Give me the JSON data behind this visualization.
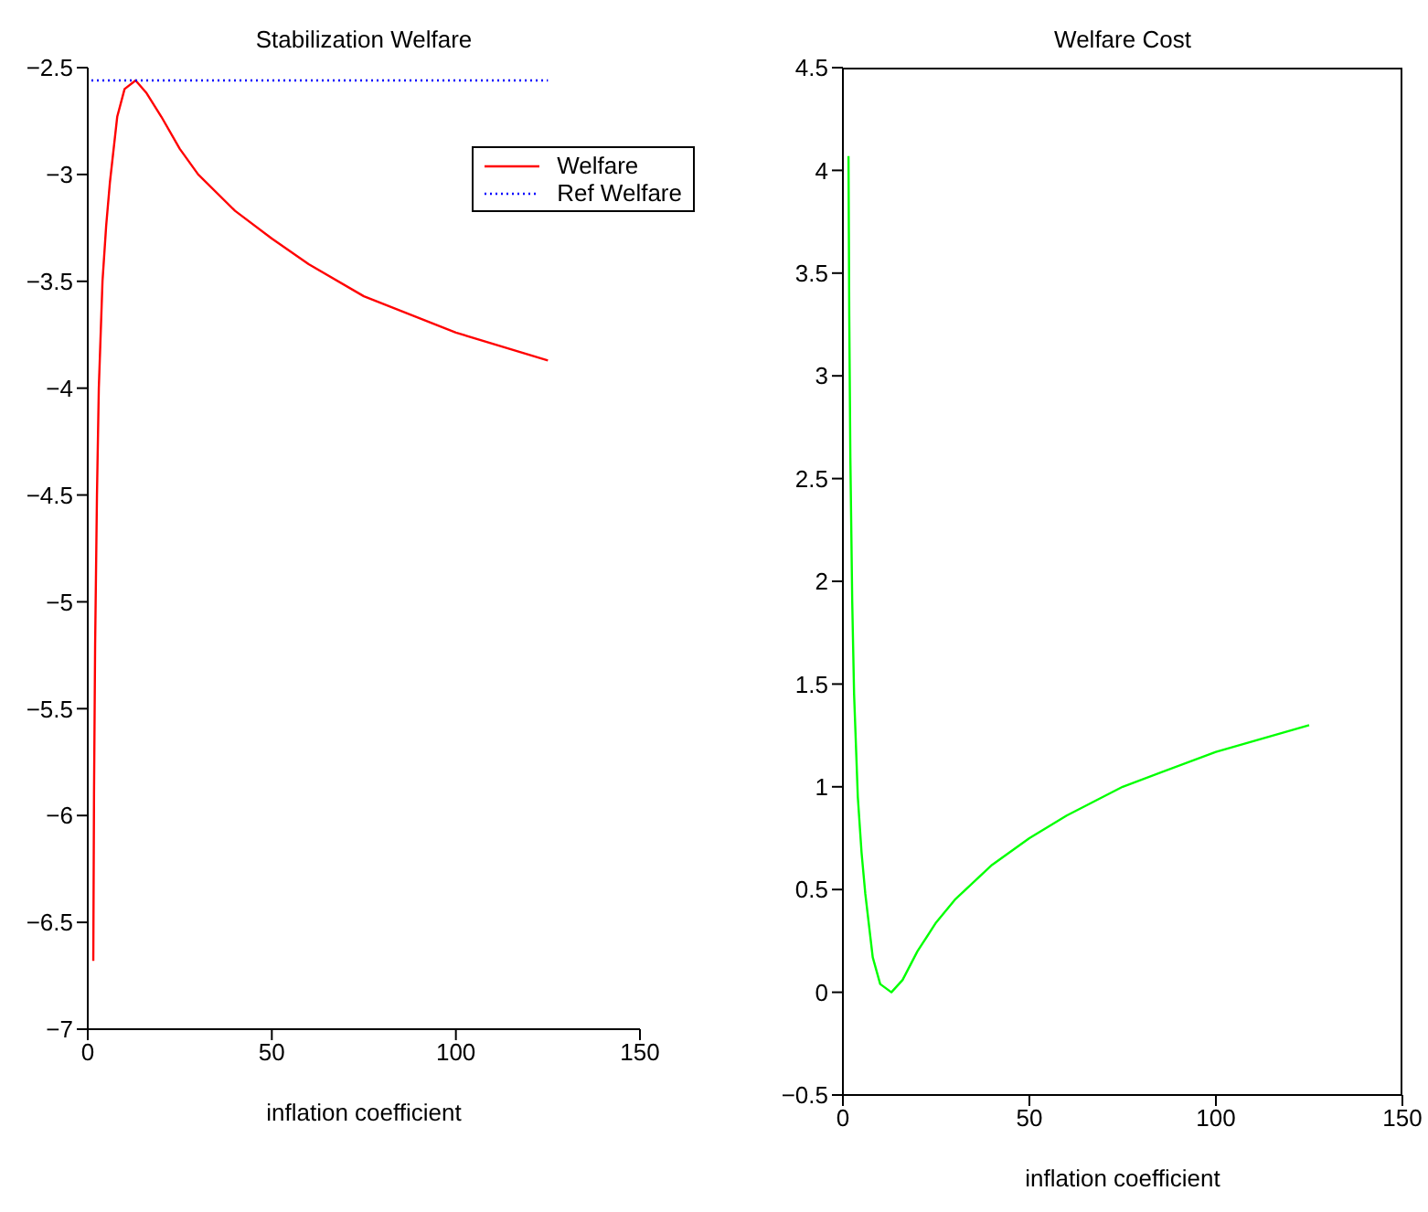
{
  "chart_data": [
    {
      "type": "line",
      "title": "Stabilization Welfare",
      "xlabel": "inflation coefficient",
      "xlim": [
        0,
        150
      ],
      "xticks": [
        0,
        50,
        100,
        150
      ],
      "ylim": [
        -7,
        -2.5
      ],
      "yticks": [
        -7,
        -6.5,
        -6,
        -5.5,
        -5,
        -4.5,
        -4,
        -3.5,
        -3,
        -2.5
      ],
      "legend": "top right",
      "series": [
        {
          "name": "Welfare",
          "color": "#ff0000",
          "line_style": "solid",
          "x": [
            1.5,
            1.7,
            2,
            2.5,
            3,
            4,
            5,
            6,
            8,
            10,
            13,
            16,
            20,
            25,
            30,
            40,
            50,
            60,
            75,
            100,
            125
          ],
          "values": [
            -6.68,
            -5.9,
            -5.2,
            -4.5,
            -4.0,
            -3.5,
            -3.24,
            -3.04,
            -2.73,
            -2.6,
            -2.56,
            -2.62,
            -2.73,
            -2.88,
            -3.0,
            -3.17,
            -3.3,
            -3.42,
            -3.57,
            -3.74,
            -3.87
          ]
        },
        {
          "name": "Ref Welfare",
          "color": "#0000ff",
          "line_style": "dotted",
          "x": [
            1,
            125
          ],
          "values": [
            -2.56,
            -2.56
          ]
        }
      ]
    },
    {
      "type": "line",
      "title": "Welfare Cost",
      "xlabel": "inflation coefficient",
      "xlim": [
        0,
        150
      ],
      "xticks": [
        0,
        50,
        100,
        150
      ],
      "ylim": [
        -0.5,
        4.5
      ],
      "yticks": [
        -0.5,
        0,
        0.5,
        1,
        1.5,
        2,
        2.5,
        3,
        3.5,
        4,
        4.5
      ],
      "legend": false,
      "series": [
        {
          "color": "#00ff00",
          "line_style": "solid",
          "x": [
            1.5,
            1.7,
            2,
            2.5,
            3,
            4,
            5,
            6,
            8,
            10,
            13,
            16,
            20,
            25,
            30,
            40,
            50,
            60,
            75,
            100,
            125
          ],
          "values": [
            4.07,
            3.3,
            2.6,
            1.9,
            1.45,
            0.95,
            0.68,
            0.48,
            0.17,
            0.04,
            0,
            0.06,
            0.2,
            0.34,
            0.45,
            0.62,
            0.75,
            0.86,
            1.0,
            1.17,
            1.3
          ]
        }
      ]
    }
  ]
}
